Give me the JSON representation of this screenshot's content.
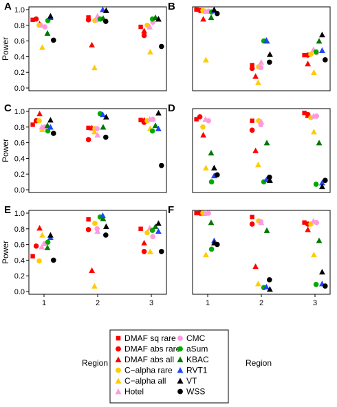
{
  "figure": {
    "ylabel": "Power",
    "xlabel": "Region",
    "yticks": [
      "0.0",
      "0.2",
      "0.4",
      "0.6",
      "0.8",
      "1.0"
    ],
    "xticks": [
      "1",
      "2",
      "3"
    ]
  },
  "legend": {
    "items": [
      {
        "label": "DMAF sq rare",
        "shape": "square",
        "color": "#ff0000"
      },
      {
        "label": "CMC",
        "shape": "circle",
        "color": "#ff99dd"
      },
      {
        "label": "DMAF abs rare",
        "shape": "circle",
        "color": "#ff0000"
      },
      {
        "label": "aSum",
        "shape": "circle",
        "color": "#00aa00"
      },
      {
        "label": "DMAF abs all",
        "shape": "triangle",
        "color": "#ff0000"
      },
      {
        "label": "KBAC",
        "shape": "triangle",
        "color": "#007700"
      },
      {
        "label": "C−alpha rare",
        "shape": "circle",
        "color": "#ffcc00"
      },
      {
        "label": "RVT1",
        "shape": "triangle",
        "color": "#2244ff"
      },
      {
        "label": "C−alpha all",
        "shape": "triangle",
        "color": "#ffcc00"
      },
      {
        "label": "VT",
        "shape": "triangle",
        "color": "#000000"
      },
      {
        "label": "Hotel",
        "shape": "triangle",
        "color": "#ff99dd"
      },
      {
        "label": "WSS",
        "shape": "circle",
        "color": "#000000"
      }
    ]
  },
  "chart_data": [
    {
      "panel": "A",
      "type": "scatter",
      "x_categories": [
        "1",
        "2",
        "3"
      ],
      "ylim": [
        0,
        1
      ],
      "series": [
        {
          "name": "DMAF sq rare",
          "values": [
            0.87,
            0.9,
            0.78
          ]
        },
        {
          "name": "DMAF abs rare",
          "values": [
            0.88,
            0.87,
            0.67
          ]
        },
        {
          "name": "DMAF abs all",
          "values": [
            0.82,
            0.55,
            0.73
          ]
        },
        {
          "name": "C−alpha rare",
          "values": [
            0.8,
            0.86,
            0.8
          ]
        },
        {
          "name": "C−alpha all",
          "values": [
            0.52,
            0.26,
            0.46
          ]
        },
        {
          "name": "Hotel",
          "values": [
            0.8,
            0.92,
            0.78
          ]
        },
        {
          "name": "CMC",
          "values": [
            0.78,
            0.87,
            0.84
          ]
        },
        {
          "name": "aSum",
          "values": [
            0.86,
            0.88,
            0.88
          ]
        },
        {
          "name": "KBAC",
          "values": [
            0.7,
            0.89,
            0.9
          ]
        },
        {
          "name": "RVT1",
          "values": [
            0.9,
            1.0,
            0.88
          ]
        },
        {
          "name": "VT",
          "values": [
            0.92,
            0.99,
            0.88
          ]
        },
        {
          "name": "WSS",
          "values": [
            0.61,
            0.85,
            0.53
          ]
        }
      ]
    },
    {
      "panel": "B",
      "type": "scatter",
      "x_categories": [
        "1",
        "2",
        "3"
      ],
      "ylim": [
        0,
        1
      ],
      "series": [
        {
          "name": "DMAF sq rare",
          "values": [
            1.0,
            0.29,
            0.42
          ]
        },
        {
          "name": "DMAF abs rare",
          "values": [
            0.99,
            0.25,
            0.42
          ]
        },
        {
          "name": "DMAF abs all",
          "values": [
            0.88,
            0.15,
            0.31
          ]
        },
        {
          "name": "C−alpha rare",
          "values": [
            0.99,
            0.27,
            0.43
          ]
        },
        {
          "name": "C−alpha all",
          "values": [
            0.36,
            0.07,
            0.2
          ]
        },
        {
          "name": "Hotel",
          "values": [
            0.98,
            0.33,
            0.49
          ]
        },
        {
          "name": "CMC",
          "values": [
            0.98,
            0.26,
            0.45
          ]
        },
        {
          "name": "aSum",
          "values": [
            0.97,
            0.6,
            0.46
          ]
        },
        {
          "name": "KBAC",
          "values": [
            0.9,
            0.6,
            0.6
          ]
        },
        {
          "name": "RVT1",
          "values": [
            0.99,
            0.61,
            0.48
          ]
        },
        {
          "name": "VT",
          "values": [
            1.0,
            0.43,
            0.68
          ]
        },
        {
          "name": "WSS",
          "values": [
            0.95,
            0.33,
            0.36
          ]
        }
      ]
    },
    {
      "panel": "C",
      "type": "scatter",
      "x_categories": [
        "1",
        "2",
        "3"
      ],
      "ylim": [
        0,
        1
      ],
      "series": [
        {
          "name": "DMAF sq rare",
          "values": [
            0.83,
            0.79,
            0.89
          ]
        },
        {
          "name": "DMAF abs rare",
          "values": [
            0.88,
            0.64,
            0.86
          ]
        },
        {
          "name": "DMAF abs all",
          "values": [
            0.97,
            0.79,
            0.89
          ]
        },
        {
          "name": "C−alpha rare",
          "values": [
            0.88,
            0.78,
            0.88
          ]
        },
        {
          "name": "C−alpha all",
          "values": [
            0.77,
            0.74,
            0.78
          ]
        },
        {
          "name": "Hotel",
          "values": [
            0.8,
            0.7,
            0.9
          ]
        },
        {
          "name": "CMC",
          "values": [
            0.8,
            0.78,
            0.9
          ]
        },
        {
          "name": "aSum",
          "values": [
            0.75,
            0.97,
            0.75
          ]
        },
        {
          "name": "KBAC",
          "values": [
            0.82,
            0.8,
            0.82
          ]
        },
        {
          "name": "RVT1",
          "values": [
            0.8,
            0.96,
            0.78
          ]
        },
        {
          "name": "VT",
          "values": [
            0.89,
            0.93,
            0.98
          ]
        },
        {
          "name": "WSS",
          "values": [
            0.72,
            0.67,
            0.31
          ]
        }
      ]
    },
    {
      "panel": "D",
      "type": "scatter",
      "x_categories": [
        "1",
        "2",
        "3"
      ],
      "ylim": [
        0,
        1
      ],
      "series": [
        {
          "name": "DMAF sq rare",
          "values": [
            0.9,
            0.88,
            0.98
          ]
        },
        {
          "name": "DMAF abs rare",
          "values": [
            0.93,
            0.76,
            0.96
          ]
        },
        {
          "name": "DMAF abs all",
          "values": [
            0.7,
            0.5,
            0.95
          ]
        },
        {
          "name": "C−alpha rare",
          "values": [
            0.8,
            0.88,
            0.92
          ]
        },
        {
          "name": "C−alpha all",
          "values": [
            0.28,
            0.32,
            0.74
          ]
        },
        {
          "name": "Hotel",
          "values": [
            0.9,
            0.87,
            0.94
          ]
        },
        {
          "name": "CMC",
          "values": [
            0.88,
            0.83,
            0.94
          ]
        },
        {
          "name": "aSum",
          "values": [
            0.1,
            0.1,
            0.07
          ]
        },
        {
          "name": "KBAC",
          "values": [
            0.47,
            0.6,
            0.6
          ]
        },
        {
          "name": "RVT1",
          "values": [
            0.18,
            0.13,
            0.09
          ]
        },
        {
          "name": "VT",
          "values": [
            0.28,
            0.12,
            0.04
          ]
        },
        {
          "name": "WSS",
          "values": [
            0.19,
            0.16,
            0.12
          ]
        }
      ]
    },
    {
      "panel": "E",
      "type": "scatter",
      "x_categories": [
        "1",
        "2",
        "3"
      ],
      "ylim": [
        0,
        1
      ],
      "series": [
        {
          "name": "DMAF sq rare",
          "values": [
            0.45,
            0.92,
            0.8
          ]
        },
        {
          "name": "DMAF abs rare",
          "values": [
            0.58,
            0.79,
            0.51
          ]
        },
        {
          "name": "DMAF abs all",
          "values": [
            0.81,
            0.27,
            0.62
          ]
        },
        {
          "name": "C−alpha rare",
          "values": [
            0.39,
            0.87,
            0.75
          ]
        },
        {
          "name": "C−alpha all",
          "values": [
            0.72,
            0.07,
            0.51
          ]
        },
        {
          "name": "Hotel",
          "values": [
            0.57,
            0.77,
            0.81
          ]
        },
        {
          "name": "CMC",
          "values": [
            0.61,
            0.8,
            0.7
          ]
        },
        {
          "name": "aSum",
          "values": [
            0.63,
            0.95,
            0.78
          ]
        },
        {
          "name": "KBAC",
          "values": [
            0.56,
            0.93,
            0.83
          ]
        },
        {
          "name": "RVT1",
          "values": [
            0.69,
            0.97,
            0.77
          ]
        },
        {
          "name": "VT",
          "values": [
            0.72,
            0.83,
            0.87
          ]
        },
        {
          "name": "WSS",
          "values": [
            0.4,
            0.72,
            0.51
          ]
        }
      ]
    },
    {
      "panel": "F",
      "type": "scatter",
      "x_categories": [
        "1",
        "2",
        "3"
      ],
      "ylim": [
        0,
        1
      ],
      "series": [
        {
          "name": "DMAF sq rare",
          "values": [
            1.0,
            0.95,
            0.88
          ]
        },
        {
          "name": "DMAF abs rare",
          "values": [
            1.0,
            0.86,
            0.86
          ]
        },
        {
          "name": "DMAF abs all",
          "values": [
            1.0,
            0.32,
            0.79
          ]
        },
        {
          "name": "C−alpha rare",
          "values": [
            1.0,
            0.9,
            0.86
          ]
        },
        {
          "name": "C−alpha all",
          "values": [
            0.47,
            0.1,
            0.47
          ]
        },
        {
          "name": "Hotel",
          "values": [
            1.0,
            0.88,
            0.9
          ]
        },
        {
          "name": "CMC",
          "values": [
            1.0,
            0.89,
            0.88
          ]
        },
        {
          "name": "aSum",
          "values": [
            0.54,
            0.05,
            0.09
          ]
        },
        {
          "name": "KBAC",
          "values": [
            0.88,
            0.78,
            0.65
          ]
        },
        {
          "name": "RVT1",
          "values": [
            0.65,
            0.06,
            0.1
          ]
        },
        {
          "name": "VT",
          "values": [
            0.62,
            0.03,
            0.25
          ]
        },
        {
          "name": "WSS",
          "values": [
            0.6,
            0.15,
            0.07
          ]
        }
      ]
    }
  ]
}
